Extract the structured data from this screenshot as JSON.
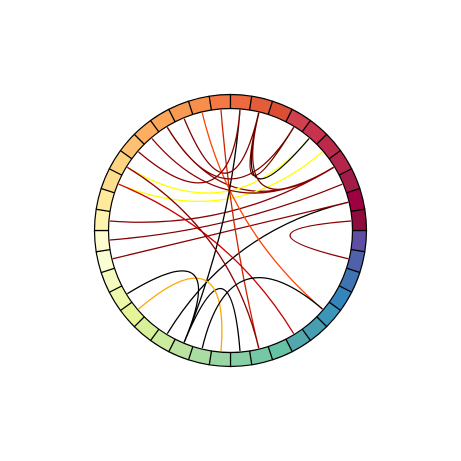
{
  "diagram": {
    "type": "chord",
    "segment_count": 40,
    "segment_colors": [
      "#5e4fa2",
      "#4e61aa",
      "#3f73b2",
      "#3385bb",
      "#3c96b7",
      "#479eb3",
      "#53a8af",
      "#66c2a5",
      "#76c8a4",
      "#87cfa4",
      "#99d6a4",
      "#aadda2",
      "#bae4a0",
      "#cbeb9d",
      "#d9f09b",
      "#e6f598",
      "#eef8a9",
      "#f5fbbe",
      "#fbfdd3",
      "#fffdd0",
      "#fff3ad",
      "#fee99d",
      "#fedd8f",
      "#fed381",
      "#fdc171",
      "#fdae61",
      "#fca65a",
      "#f99a52",
      "#f78e4b",
      "#f47944",
      "#ed6a3f",
      "#e55c39",
      "#dc4e34",
      "#d0404d",
      "#c7334c",
      "#bc2a4b",
      "#b3254a",
      "#a31c48",
      "#9e0142",
      "#8f0d3e"
    ],
    "chords": [
      {
        "from": 36,
        "to": 26,
        "color": "#8b0000"
      },
      {
        "from": 36,
        "to": 20,
        "color": "#8b0000"
      },
      {
        "from": 37,
        "to": 19,
        "color": "#800000"
      },
      {
        "from": 38,
        "to": 13,
        "color": "#000000"
      },
      {
        "from": 38,
        "to": 18,
        "color": "#8b0000"
      },
      {
        "from": 35,
        "to": 22,
        "color": "#ffff00"
      },
      {
        "from": 34,
        "to": 23,
        "color": "#ffff00"
      },
      {
        "from": 33,
        "to": 31,
        "color": "#ffff00"
      },
      {
        "from": 28,
        "to": 4,
        "color": "#ff4500"
      },
      {
        "from": 29,
        "to": 8,
        "color": "#cc2200"
      },
      {
        "from": 22,
        "to": 6,
        "color": "#cc0000"
      },
      {
        "from": 30,
        "to": 12,
        "color": "#000000"
      },
      {
        "from": 31,
        "to": 34,
        "color": "#000000"
      },
      {
        "from": 31,
        "to": 36,
        "color": "#800000"
      },
      {
        "from": 26,
        "to": 33,
        "color": "#800000"
      },
      {
        "from": 25,
        "to": 36,
        "color": "#8b0000"
      },
      {
        "from": 27,
        "to": 31,
        "color": "#800000"
      },
      {
        "from": 24,
        "to": 30,
        "color": "#8b0000"
      },
      {
        "from": 31,
        "to": 33,
        "color": "#660000"
      },
      {
        "from": 1,
        "to": 39,
        "color": "#8b0000"
      },
      {
        "from": 9,
        "to": 12,
        "color": "#000000"
      },
      {
        "from": 10,
        "to": 15,
        "color": "#ffa500"
      },
      {
        "from": 12,
        "to": 16,
        "color": "#000000"
      },
      {
        "from": 23,
        "to": 8,
        "color": "#8b0000"
      },
      {
        "from": 4,
        "to": 11,
        "color": "#000000"
      }
    ]
  }
}
